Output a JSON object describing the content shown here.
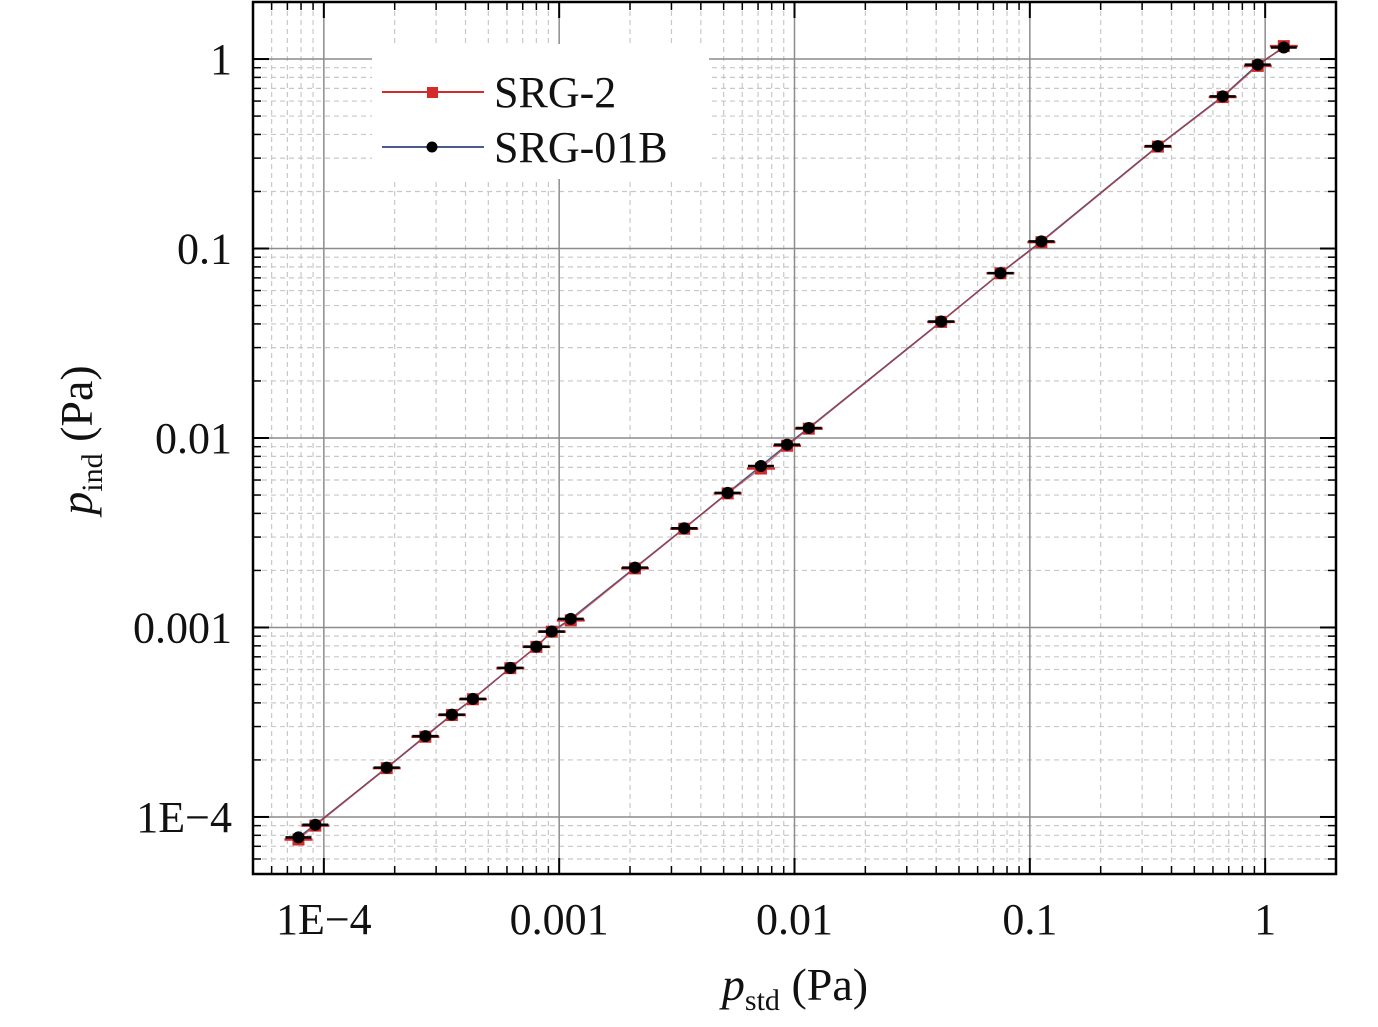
{
  "chart_data": {
    "type": "scatter",
    "xscale": "log",
    "yscale": "log",
    "xlim": [
      5e-05,
      2
    ],
    "ylim": [
      5e-05,
      2
    ],
    "grid": true,
    "legend_position": "top-left",
    "xlabel": {
      "symbol": "p",
      "subscript": "std",
      "unit": " (Pa)"
    },
    "ylabel": {
      "symbol": "p",
      "subscript": "ind",
      "unit": " (Pa)"
    },
    "x_ticks": [
      {
        "value": 0.0001,
        "label": "1E−4"
      },
      {
        "value": 0.001,
        "label": "0.001"
      },
      {
        "value": 0.01,
        "label": "0.01"
      },
      {
        "value": 0.1,
        "label": "0.1"
      },
      {
        "value": 1,
        "label": "1"
      }
    ],
    "y_ticks": [
      {
        "value": 0.0001,
        "label": "1E−4"
      },
      {
        "value": 0.001,
        "label": "0.001"
      },
      {
        "value": 0.01,
        "label": "0.01"
      },
      {
        "value": 0.1,
        "label": "0.1"
      },
      {
        "value": 1,
        "label": "1"
      }
    ],
    "series": [
      {
        "name": "SRG-2",
        "color": "#d42a2a",
        "marker": "square",
        "x": [
          7.8e-05,
          9.2e-05,
          0.000185,
          0.00027,
          0.00035,
          0.00043,
          0.00062,
          0.0008,
          0.00093,
          0.00112,
          0.0021,
          0.0034,
          0.0052,
          0.0072,
          0.0093,
          0.0115,
          0.042,
          0.075,
          0.112,
          0.35,
          0.66,
          0.93,
          1.2
        ],
        "y": [
          7.6e-05,
          9e-05,
          0.000181,
          0.000265,
          0.000345,
          0.000418,
          0.00061,
          0.00079,
          0.00095,
          0.00109,
          0.00205,
          0.00332,
          0.0051,
          0.0069,
          0.0091,
          0.0112,
          0.041,
          0.074,
          0.108,
          0.345,
          0.63,
          0.92,
          1.17
        ]
      },
      {
        "name": "SRG-01B",
        "color": "#000000",
        "marker": "circle",
        "line_color": "#4a5a8a",
        "x": [
          7.8e-05,
          9.2e-05,
          0.000185,
          0.00027,
          0.00035,
          0.00043,
          0.00062,
          0.0008,
          0.00093,
          0.00112,
          0.0021,
          0.0034,
          0.0052,
          0.0072,
          0.0093,
          0.0115,
          0.042,
          0.075,
          0.112,
          0.35,
          0.66,
          0.93,
          1.2
        ],
        "y": [
          7.8e-05,
          9.1e-05,
          0.000182,
          0.000267,
          0.000347,
          0.00042,
          0.000612,
          0.000792,
          0.000952,
          0.00111,
          0.00207,
          0.00334,
          0.00513,
          0.00712,
          0.00922,
          0.0113,
          0.0412,
          0.0742,
          0.109,
          0.347,
          0.635,
          0.935,
          1.15
        ]
      }
    ]
  }
}
